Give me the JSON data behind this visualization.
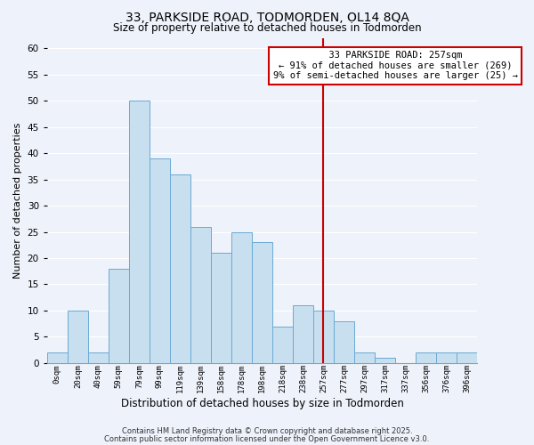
{
  "title": "33, PARKSIDE ROAD, TODMORDEN, OL14 8QA",
  "subtitle": "Size of property relative to detached houses in Todmorden",
  "xlabel": "Distribution of detached houses by size in Todmorden",
  "ylabel": "Number of detached properties",
  "bin_labels": [
    "0sqm",
    "20sqm",
    "40sqm",
    "59sqm",
    "79sqm",
    "99sqm",
    "119sqm",
    "139sqm",
    "158sqm",
    "178sqm",
    "198sqm",
    "218sqm",
    "238sqm",
    "257sqm",
    "277sqm",
    "297sqm",
    "317sqm",
    "337sqm",
    "356sqm",
    "376sqm",
    "396sqm"
  ],
  "bar_heights": [
    2,
    10,
    2,
    18,
    50,
    39,
    36,
    26,
    21,
    25,
    23,
    7,
    11,
    10,
    8,
    2,
    1,
    0,
    2,
    2,
    2
  ],
  "bar_color": "#c8dff0",
  "bar_edge_color": "#6aaad4",
  "vline_x_index": 13,
  "vline_color": "#cc0000",
  "ylim": [
    0,
    62
  ],
  "yticks": [
    0,
    5,
    10,
    15,
    20,
    25,
    30,
    35,
    40,
    45,
    50,
    55,
    60
  ],
  "annotation_title": "33 PARKSIDE ROAD: 257sqm",
  "annotation_line1": "← 91% of detached houses are smaller (269)",
  "annotation_line2": "9% of semi-detached houses are larger (25) →",
  "annotation_box_color": "#ffffff",
  "annotation_box_edge": "#cc0000",
  "footer1": "Contains HM Land Registry data © Crown copyright and database right 2025.",
  "footer2": "Contains public sector information licensed under the Open Government Licence v3.0.",
  "background_color": "#eef2fa",
  "grid_color": "#ffffff",
  "title_fontsize": 10,
  "subtitle_fontsize": 8.5,
  "ylabel_fontsize": 8,
  "xlabel_fontsize": 8.5
}
